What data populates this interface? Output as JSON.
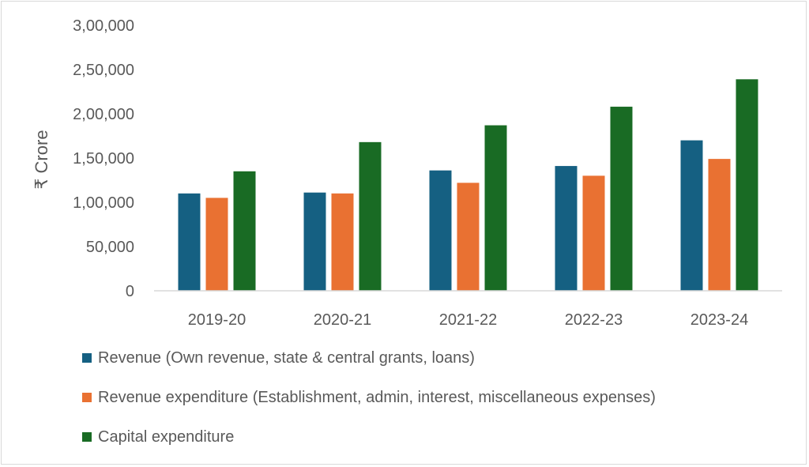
{
  "chart_data": {
    "type": "bar",
    "ylabel": "₹ Crore",
    "categories": [
      "2019-20",
      "2020-21",
      "2021-22",
      "2022-23",
      "2023-24"
    ],
    "ylim": [
      0,
      300000
    ],
    "yticks": [
      0,
      50000,
      100000,
      150000,
      200000,
      250000,
      300000
    ],
    "ytick_labels": [
      "0",
      "50,000",
      "1,00,000",
      "1,50,000",
      "2,00,000",
      "2,50,000",
      "3,00,000"
    ],
    "grid": false,
    "legend_position": "bottom-left",
    "series": [
      {
        "name": "Revenue (Own revenue, state & central grants, loans)",
        "color": "#156082",
        "values": [
          110000,
          111000,
          136000,
          141000,
          170000
        ]
      },
      {
        "name": "Revenue expenditure (Establishment, admin, interest, miscellaneous expenses)",
        "color": "#E97132",
        "values": [
          105000,
          110000,
          122000,
          130000,
          149000
        ]
      },
      {
        "name": "Capital expenditure",
        "color": "#196B24",
        "values": [
          135000,
          168000,
          187000,
          208000,
          239000
        ]
      }
    ]
  }
}
